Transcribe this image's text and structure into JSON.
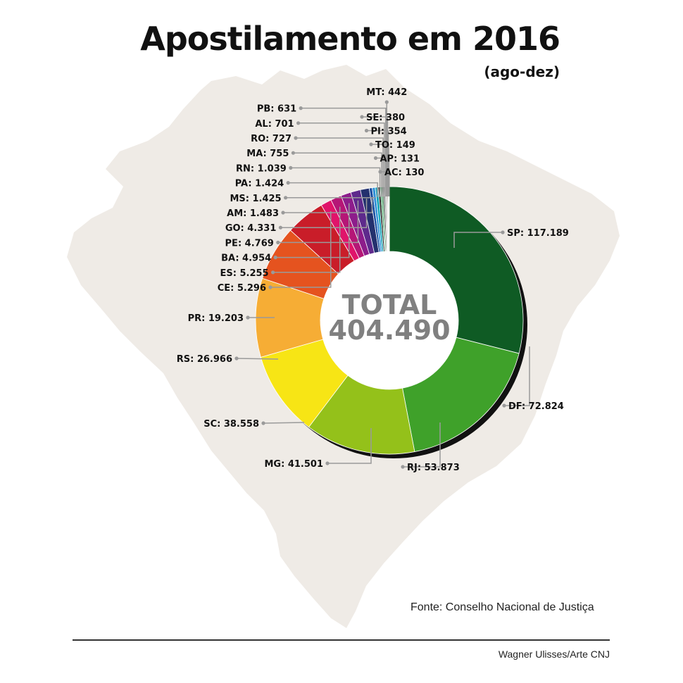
{
  "title": "Apostilamento em 2016",
  "subtitle": "(ago-dez)",
  "total_label": "TOTAL",
  "total_value": "404.490",
  "source": "Fonte: Conselho Nacional de Justiça",
  "credit": "Wagner Ulisses/Arte CNJ",
  "colors": {
    "map": "#efebe6",
    "shadow": "#111111",
    "leader": "#9a9a9a"
  },
  "chart_data": {
    "type": "pie",
    "variant": "donut",
    "title": "Apostilamento em 2016",
    "subtitle": "(ago-dez)",
    "total": 404490,
    "slices": [
      {
        "name": "SP",
        "value": 117189,
        "label": "117.189",
        "color": "#0f5b24"
      },
      {
        "name": "DF",
        "value": 72824,
        "label": "72.824",
        "color": "#3fa12a"
      },
      {
        "name": "RJ",
        "value": 53873,
        "label": "53.873",
        "color": "#94c11a"
      },
      {
        "name": "MG",
        "value": 41501,
        "label": "41.501",
        "color": "#f7e515"
      },
      {
        "name": "SC",
        "value": 38558,
        "label": "38.558",
        "color": "#f6ad35"
      },
      {
        "name": "RS",
        "value": 26966,
        "label": "26.966",
        "color": "#e5531f"
      },
      {
        "name": "PR",
        "value": 19203,
        "label": "19.203",
        "color": "#c91d29"
      },
      {
        "name": "CE",
        "value": 5296,
        "label": "5.296",
        "color": "#e0146a"
      },
      {
        "name": "ES",
        "value": 5255,
        "label": "5.255",
        "color": "#b51676"
      },
      {
        "name": "BA",
        "value": 4954,
        "label": "4.954",
        "color": "#8d1d8b"
      },
      {
        "name": "PE",
        "value": 4769,
        "label": "4.769",
        "color": "#5e2a8c"
      },
      {
        "name": "GO",
        "value": 4331,
        "label": "4.331",
        "color": "#24316e"
      },
      {
        "name": "AM",
        "value": 1483,
        "label": "1.483",
        "color": "#1a4fa0"
      },
      {
        "name": "MS",
        "value": 1425,
        "label": "1.425",
        "color": "#2f8fd6"
      },
      {
        "name": "PA",
        "value": 1424,
        "label": "1.424",
        "color": "#15a3b8"
      },
      {
        "name": "RN",
        "value": 1039,
        "label": "1.039",
        "color": "#1b1b1b"
      },
      {
        "name": "MA",
        "value": 755,
        "label": "755",
        "color": "#2e9d52"
      },
      {
        "name": "RO",
        "value": 727,
        "label": "727",
        "color": "#1f6b3a"
      },
      {
        "name": "AL",
        "value": 701,
        "label": "701",
        "color": "#444444"
      },
      {
        "name": "PB",
        "value": 631,
        "label": "631",
        "color": "#a9a9a9"
      },
      {
        "name": "MT",
        "value": 442,
        "label": "442",
        "color": "#6e6e6e"
      },
      {
        "name": "SE",
        "value": 380,
        "label": "380",
        "color": "#6b3a1c"
      },
      {
        "name": "PI",
        "value": 354,
        "label": "354",
        "color": "#c9c9c9"
      },
      {
        "name": "TO",
        "value": 149,
        "label": "149",
        "color": "#8a8a8a"
      },
      {
        "name": "AP",
        "value": 131,
        "label": "131",
        "color": "#000000"
      },
      {
        "name": "AC",
        "value": 130,
        "label": "130",
        "color": "#5a3418"
      }
    ]
  }
}
